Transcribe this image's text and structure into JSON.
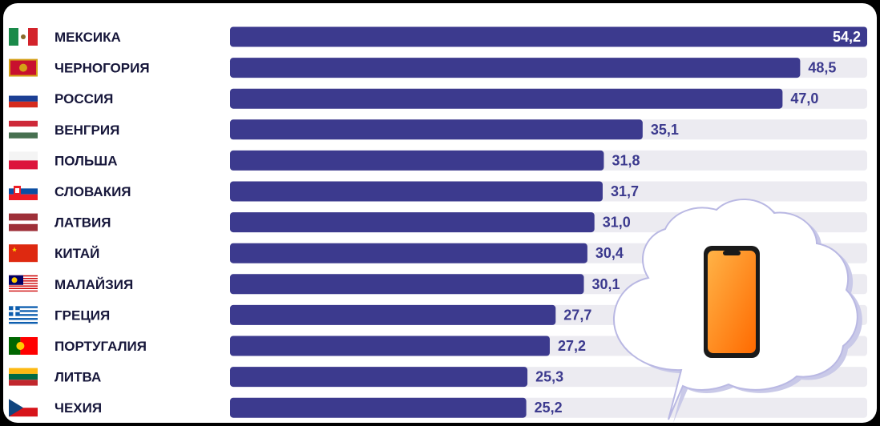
{
  "colors": {
    "bar": "#3c3a8e",
    "track": "#ecebf1",
    "label": "#16163a",
    "cloud_fill": "#ffffff",
    "cloud_shadow": "#c9c9e8",
    "phone_outer": "#1a1a1a",
    "phone_gradient_top": "#ffb347",
    "phone_gradient_bottom": "#ff6a00"
  },
  "icons": [
    "flag-icon",
    "cloud-icon",
    "smartphone-icon"
  ],
  "chart_data": {
    "type": "bar",
    "orientation": "horizontal",
    "title": "",
    "xlabel": "",
    "ylabel": "",
    "xlim": [
      0,
      54.2
    ],
    "grid": false,
    "legend": "none",
    "categories": [
      "МЕКСИКА",
      "ЧЕРНОГОРИЯ",
      "РОССИЯ",
      "ВЕНГРИЯ",
      "ПОЛЬША",
      "СЛОВАКИЯ",
      "ЛАТВИЯ",
      "КИТАЙ",
      "МАЛАЙЗИЯ",
      "ГРЕЦИЯ",
      "ПОРТУГАЛИЯ",
      "ЛИТВА",
      "ЧЕХИЯ"
    ],
    "values": [
      54.2,
      48.5,
      47.0,
      35.1,
      31.8,
      31.7,
      31.0,
      30.4,
      30.1,
      27.7,
      27.2,
      25.3,
      25.2
    ],
    "value_labels": [
      "54,2",
      "48,5",
      "47,0",
      "35,1",
      "31,8",
      "31,7",
      "31,0",
      "30,4",
      "30,1",
      "27,7",
      "27,2",
      "25,3",
      "25,2"
    ],
    "flags": [
      "mexico-flag",
      "montenegro-flag",
      "russia-flag",
      "hungary-flag",
      "poland-flag",
      "slovakia-flag",
      "latvia-flag",
      "china-flag",
      "malaysia-flag",
      "greece-flag",
      "portugal-flag",
      "lithuania-flag",
      "czechia-flag"
    ]
  }
}
